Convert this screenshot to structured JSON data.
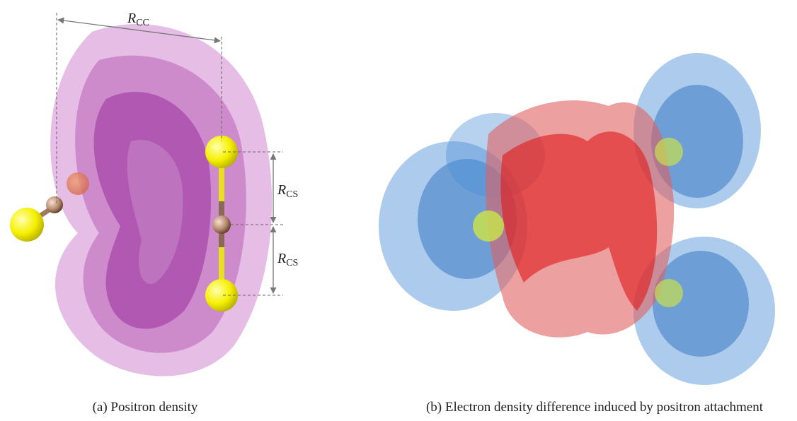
{
  "panels": [
    {
      "caption": "(a) Positron density",
      "labels": [
        {
          "symbol": "R",
          "subscript": "CC"
        },
        {
          "symbol": "R",
          "subscript": "CS"
        },
        {
          "symbol": "R",
          "subscript": "CS"
        }
      ]
    },
    {
      "caption": "(b) Electron density difference induced by positron attachment"
    }
  ]
}
